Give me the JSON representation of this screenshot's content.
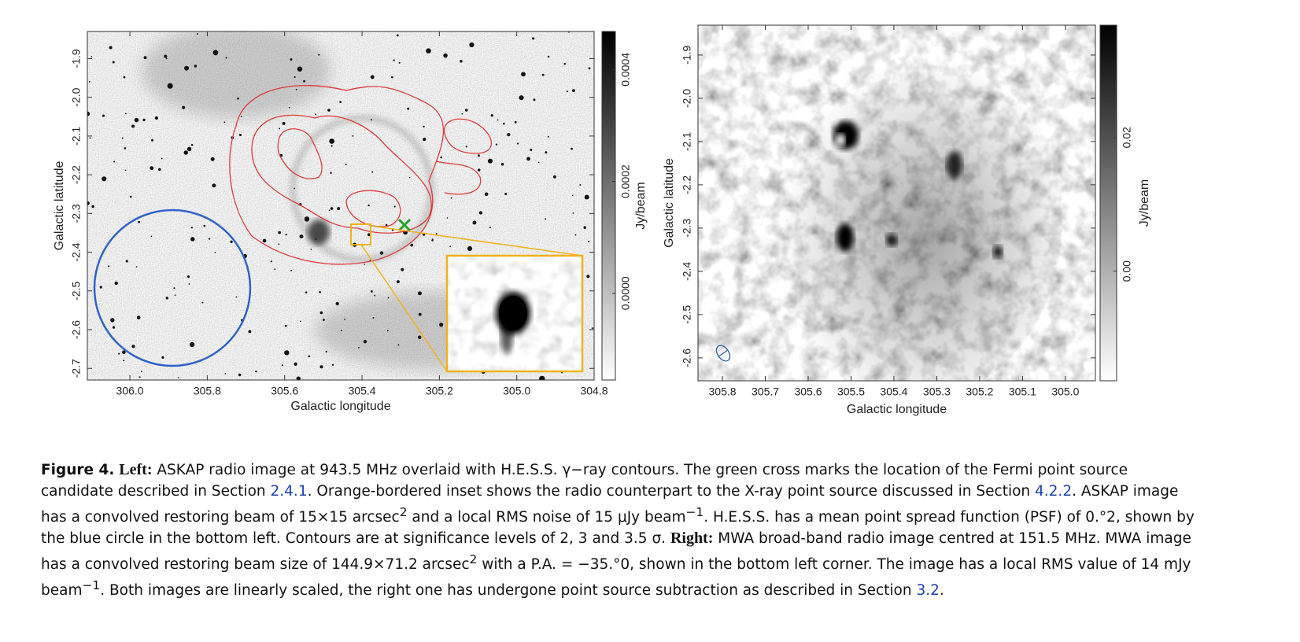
{
  "chart_data": [
    {
      "type": "image",
      "xlabel": "Galactic longitude",
      "ylabel": "Galactic latitude",
      "colorbar_label": "Jy/beam",
      "xlim": [
        306.11,
        304.8
      ],
      "ylim": [
        -2.73,
        -1.83
      ],
      "xticks": [
        {
          "value": 306.0,
          "label": "306.0"
        },
        305.8,
        305.6,
        305.4,
        305.2,
        {
          "value": 305.0,
          "label": "305.0"
        },
        304.8
      ],
      "yticks": [
        -1.9,
        {
          "value": -2.0,
          "label": "-2.0"
        },
        -2.1,
        -2.2,
        -2.3,
        -2.4,
        -2.5,
        -2.6,
        -2.7
      ],
      "clim": [
        -0.000155,
        0.000468
      ],
      "cticks": [
        {
          "value": 0,
          "label": "0.0000"
        },
        0.0002,
        0.0004
      ]
    },
    {
      "type": "image",
      "xlabel": "Galactic longitude",
      "ylabel": "Galactic latitude",
      "colorbar_label": "Jy/beam",
      "xlim": [
        305.857,
        304.93
      ],
      "ylim": [
        -2.653,
        -1.831
      ],
      "xticks": [
        305.8,
        305.7,
        305.6,
        305.5,
        305.4,
        305.3,
        305.2,
        305.1,
        {
          "value": 305.0,
          "label": "305.0"
        }
      ],
      "yticks": [
        -1.9,
        {
          "value": -2.0,
          "label": "-2.0"
        },
        -2.1,
        -2.2,
        -2.3,
        -2.4,
        -2.5,
        -2.6
      ],
      "clim": [
        -0.0164,
        0.0368
      ],
      "cticks": [
        {
          "value": 0,
          "label": "0.00"
        },
        0.02
      ]
    }
  ],
  "caption": [
    "Figure 4.",
    "Left:",
    " ASKAP radio image at 943.5 MHz overlaid with H.E.S.S. γ−ray contours. The green cross marks the location of the Fermi point source candidate described in Section ",
    "2.4.1",
    ". Orange-bordered inset shows the radio counterpart to the X-ray point source discussed in Section ",
    "4.2.2",
    ". ASKAP image has a convolved restoring beam of 15×15 arcsec",
    "2",
    " and a local RMS noise of 15 μJy beam",
    "−1",
    ". H.E.S.S. has a mean point spread function (PSF) of 0.°2, shown by the blue circle in the bottom left. Contours are at significance levels of 2, 3 and 3.5 σ. ",
    "Right:",
    " MWA broad-band radio image centred at 151.5 MHz. MWA image has a convolved restoring beam size of 144.9×71.2 arcsec",
    "2",
    " with a P.A. = −35.°0, shown in the bottom left corner. The image has a local RMS value of 14 mJy beam",
    "−1",
    ". Both images are linearly scaled, the right one has undergone point source subtraction as described in Section ",
    "3.2",
    "."
  ]
}
